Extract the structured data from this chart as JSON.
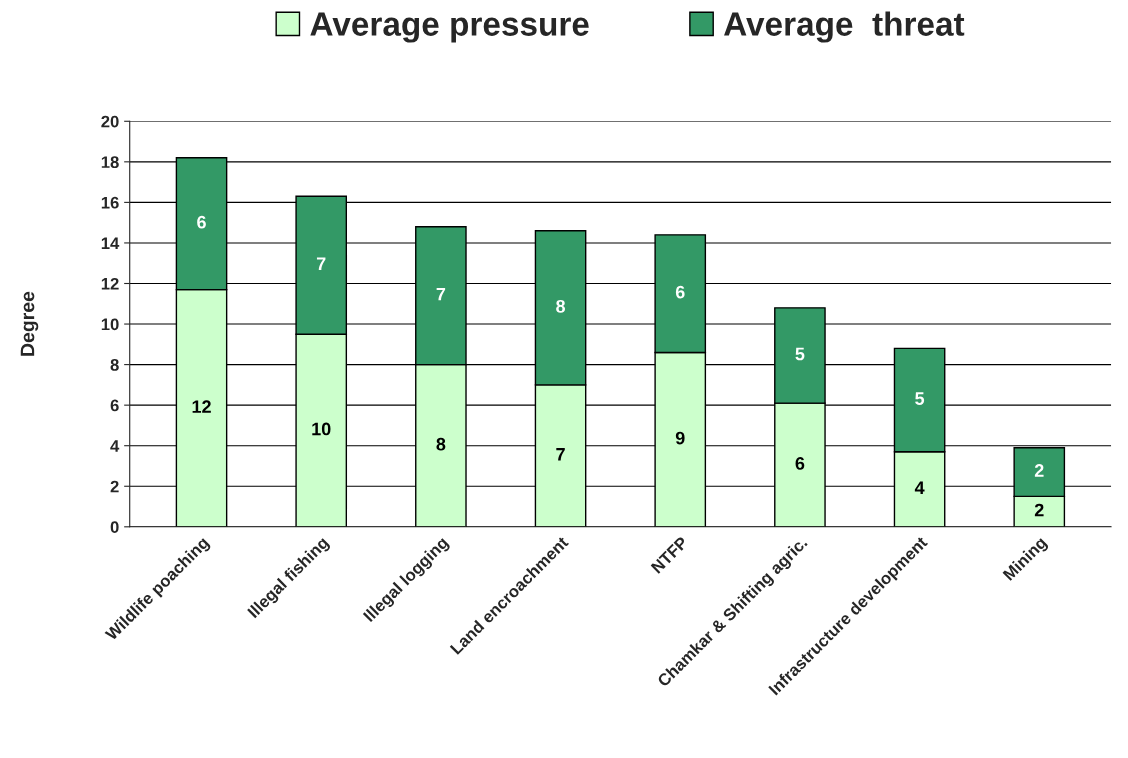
{
  "chart_data": {
    "type": "bar",
    "stacked": true,
    "ylabel": "Degree",
    "categories": [
      "Wildlife poaching",
      "Illegal fishing",
      "Illegal logging",
      "Land encroachment",
      "NTFP",
      "Chamkar & Shifting agric.",
      "Infrastructure development",
      "Mining"
    ],
    "series": [
      {
        "name": "Average pressure",
        "color": "#ccffcc",
        "values": [
          11.7,
          9.5,
          8.0,
          7.0,
          8.6,
          6.1,
          3.7,
          1.5
        ],
        "value_labels": [
          "12",
          "10",
          "8",
          "7",
          "9",
          "6",
          "4",
          "2"
        ]
      },
      {
        "name": "Average  threat",
        "color": "#339966",
        "values": [
          6.5,
          6.8,
          6.8,
          7.6,
          5.8,
          4.7,
          5.1,
          2.4
        ],
        "value_labels": [
          "6",
          "7",
          "7",
          "8",
          "6",
          "5",
          "5",
          "2"
        ]
      }
    ],
    "ylim": [
      0,
      20
    ],
    "yticks": [
      0,
      2,
      4,
      6,
      8,
      10,
      12,
      14,
      16,
      18,
      20
    ],
    "grid": "y",
    "legend": "top"
  }
}
